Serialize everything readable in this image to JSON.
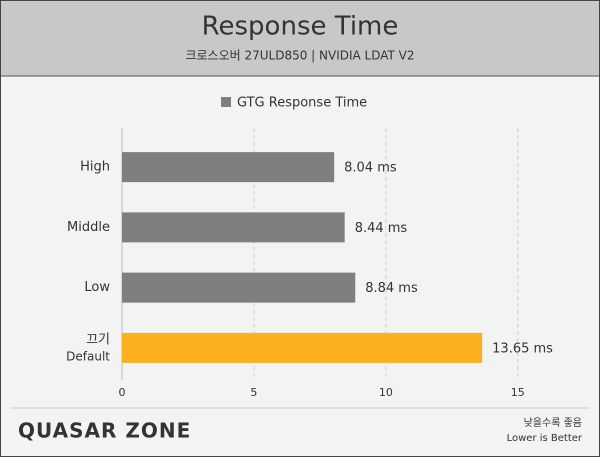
{
  "chart_data": {
    "type": "bar",
    "orientation": "horizontal",
    "title": "Response Time",
    "subtitle": "크로스오버 27ULD850  |  NVIDIA LDAT V2",
    "series_name": "GTG Response Time",
    "legend_color": "#7f7f7f",
    "categories": [
      "High",
      "Middle",
      "Low",
      "끄기"
    ],
    "category_sublabels": [
      null,
      null,
      null,
      "Default"
    ],
    "values": [
      8.04,
      8.44,
      8.84,
      13.65
    ],
    "value_labels": [
      "8.04 ms",
      "8.44 ms",
      "8.84 ms",
      "13.65 ms"
    ],
    "colors": [
      "#7f7f7f",
      "#7f7f7f",
      "#7f7f7f",
      "#fbb01f"
    ],
    "xlim": [
      0,
      16.6
    ],
    "xticks": [
      0,
      5,
      10,
      15
    ],
    "grid": true,
    "brand": "QUASAR ZONE",
    "note": "낮을수록 좋음",
    "note_en": "Lower is Better"
  }
}
